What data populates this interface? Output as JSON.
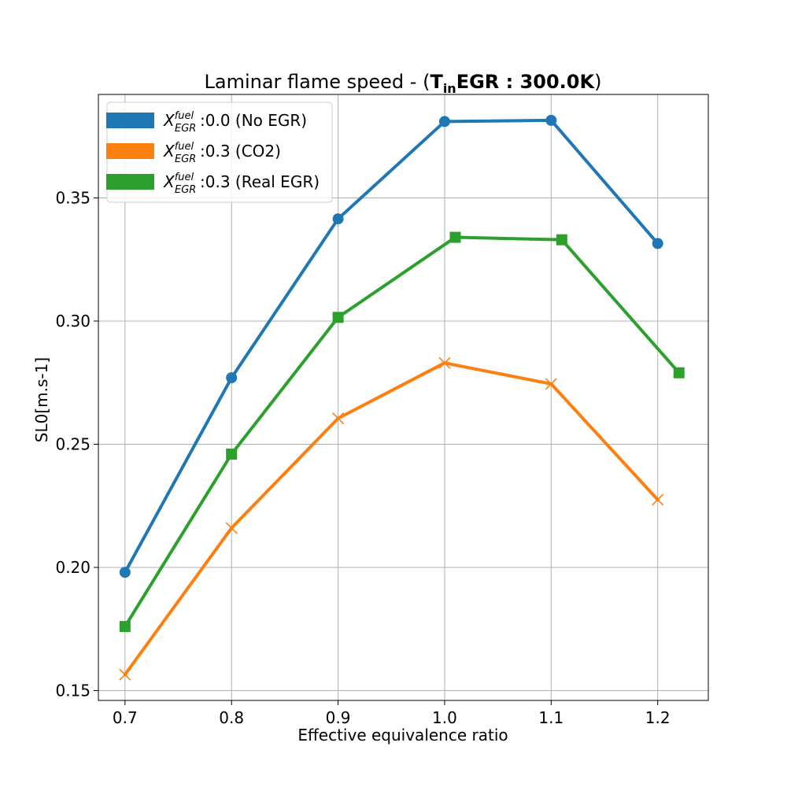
{
  "chart_data": {
    "type": "line",
    "title_prefix": "Laminar flame speed - (",
    "title_bold_T": "T",
    "title_bold_sub": "in",
    "title_bold_rest": "EGR : 300.0K",
    "title_suffix": ")",
    "xlabel": "Effective equivalence ratio",
    "ylabel": "SL0[m.s-1]",
    "xlim": [
      0.675,
      1.2475
    ],
    "ylim": [
      0.146,
      0.392
    ],
    "x_ticks": [
      0.7,
      0.8,
      0.9,
      1.0,
      1.1,
      1.2
    ],
    "x_tick_labels": [
      "0.7",
      "0.8",
      "0.9",
      "1.0",
      "1.1",
      "1.2"
    ],
    "y_ticks": [
      0.15,
      0.2,
      0.25,
      0.3,
      0.35
    ],
    "y_tick_labels": [
      "0.15",
      "0.20",
      "0.25",
      "0.30",
      "0.35"
    ],
    "grid": true,
    "legend_position": "upper-left",
    "series": [
      {
        "name": "No EGR",
        "legend_var": "X",
        "legend_sup": "fuel",
        "legend_sub": "EGR",
        "legend_rest": ":0.0 (No EGR)",
        "color": "#1f77b4",
        "marker": "circle",
        "x": [
          0.7,
          0.8,
          0.9,
          1.0,
          1.1,
          1.2
        ],
        "y": [
          0.198,
          0.277,
          0.3415,
          0.381,
          0.3815,
          0.3315
        ]
      },
      {
        "name": "CO2",
        "legend_var": "X",
        "legend_sup": "fuel",
        "legend_sub": "EGR",
        "legend_rest": ":0.3 (CO2)",
        "color": "#ff7f0e",
        "marker": "x",
        "x": [
          0.7,
          0.8,
          0.9,
          1.0,
          1.1,
          1.2
        ],
        "y": [
          0.1565,
          0.216,
          0.2605,
          0.283,
          0.2745,
          0.2275
        ]
      },
      {
        "name": "Real EGR",
        "legend_var": "X",
        "legend_sup": "fuel",
        "legend_sub": "EGR",
        "legend_rest": ":0.3 (Real EGR)",
        "color": "#2ca02c",
        "marker": "square",
        "x": [
          0.7,
          0.8,
          0.9,
          1.01,
          1.11,
          1.22
        ],
        "y": [
          0.176,
          0.246,
          0.3015,
          0.334,
          0.333,
          0.279
        ]
      }
    ]
  }
}
